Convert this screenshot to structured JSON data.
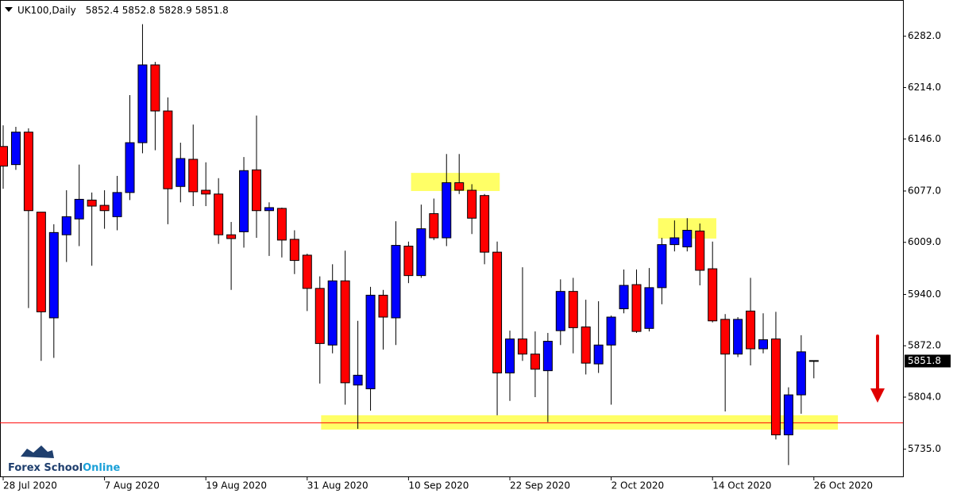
{
  "chart_data": {
    "type": "candlestick",
    "title": "UK100,Daily",
    "categories": [
      "28 Jul 2020",
      null,
      null,
      null,
      null,
      null,
      null,
      null,
      "7 Aug 2020",
      null,
      null,
      null,
      null,
      null,
      null,
      null,
      "19 Aug 2020",
      null,
      null,
      null,
      null,
      null,
      null,
      null,
      "31 Aug 2020",
      null,
      null,
      null,
      null,
      null,
      null,
      null,
      "10 Sep 2020",
      null,
      null,
      null,
      null,
      null,
      null,
      null,
      "22 Sep 2020",
      null,
      null,
      null,
      null,
      null,
      null,
      null,
      "2 Oct 2020",
      null,
      null,
      null,
      null,
      null,
      null,
      null,
      "14 Oct 2020",
      null,
      null,
      null,
      null,
      null,
      null,
      null,
      "26 Oct 2020"
    ],
    "open": [
      6136,
      6112,
      6155,
      6049,
      5909,
      6019,
      6040,
      6065,
      6058,
      6043,
      6075,
      6141,
      6244,
      6183,
      6083,
      6119,
      6078,
      6073,
      6019,
      6023,
      6105,
      6051,
      6054,
      6013,
      5992,
      5948,
      5873,
      5958,
      5820,
      5815,
      5939,
      5909,
      6004,
      5965,
      6047,
      6015,
      6088,
      6078,
      6071,
      5996,
      5836,
      5881,
      5861,
      5839,
      5892,
      5944,
      5897,
      5848,
      5873,
      5921,
      5953,
      5895,
      5949,
      6006,
      6003,
      6024,
      5974,
      5907,
      5861,
      5918,
      5868,
      5881,
      5754,
      5807,
      5852.4
    ],
    "high": [
      6164,
      6162,
      6160,
      6049,
      6033,
      6078,
      6112,
      6075,
      6078,
      6097,
      6204,
      6298,
      6248,
      6201,
      6141,
      6165,
      6115,
      6094,
      6036,
      6122,
      6177,
      6062,
      6055,
      6025,
      5994,
      5964,
      5980,
      5998,
      5905,
      5950,
      5946,
      6037,
      6010,
      6059,
      6067,
      6126,
      6126,
      6086,
      6073,
      6010,
      5892,
      5976,
      5891,
      5889,
      5960,
      5962,
      5933,
      5931,
      5912,
      5973,
      5973,
      5975,
      6015,
      6038,
      6041,
      6034,
      6010,
      5914,
      5910,
      5962,
      5915,
      5917,
      5817,
      5886,
      5852.8
    ],
    "low": [
      6080,
      6105,
      5922,
      5852,
      5856,
      5983,
      6004,
      5978,
      6027,
      6025,
      6065,
      6127,
      6131,
      6033,
      6062,
      6057,
      6057,
      6007,
      5946,
      6002,
      6015,
      5991,
      5989,
      5967,
      5918,
      5822,
      5862,
      5794,
      5762,
      5786,
      5867,
      5873,
      5955,
      5962,
      6012,
      6004,
      6073,
      6020,
      5980,
      5780,
      5799,
      5852,
      5804,
      5771,
      5873,
      5862,
      5834,
      5836,
      5794,
      5915,
      5889,
      5891,
      5927,
      5997,
      5997,
      5952,
      5903,
      5785,
      5857,
      5846,
      5862,
      5748,
      5714,
      5782,
      5828.9
    ],
    "close": [
      6110,
      6155,
      6051,
      5917,
      6022,
      6043,
      6066,
      6057,
      6051,
      6075,
      6141,
      6244,
      6183,
      6080,
      6120,
      6076,
      6073,
      6019,
      6014,
      6104,
      6051,
      6055,
      6012,
      5985,
      5948,
      5875,
      5958,
      5823,
      5833,
      5939,
      5910,
      6005,
      5965,
      6027,
      6015,
      6088,
      6078,
      6041,
      5996,
      5836,
      5881,
      5861,
      5841,
      5878,
      5944,
      5896,
      5849,
      5873,
      5910,
      5952,
      5891,
      5949,
      6006,
      6015,
      6025,
      5972,
      5905,
      5861,
      5907,
      5868,
      5880,
      5754,
      5807,
      5864,
      5851.8
    ],
    "bull_color": "#0000ff",
    "bear_color": "#ff0000",
    "ylim": [
      5699,
      6330
    ],
    "yticks": [
      {
        "value": 5735,
        "label": "5735.0"
      },
      {
        "value": 5804,
        "label": "5804.0"
      },
      {
        "value": 5872,
        "label": "5872.0"
      },
      {
        "value": 5940,
        "label": "5940.0"
      },
      {
        "value": 6009,
        "label": "6009.0"
      },
      {
        "value": 6077,
        "label": "6077.0"
      },
      {
        "value": 6146,
        "label": "6146.0"
      },
      {
        "value": 6214,
        "label": "6214.0"
      },
      {
        "value": 6282,
        "label": "6282.0"
      }
    ],
    "hline": {
      "value": 5770,
      "color": "#ff0000"
    },
    "zones": [
      {
        "x_range": [
          32.2,
          39.2
        ],
        "y_range": [
          6077,
          6101
        ]
      },
      {
        "x_range": [
          51.7,
          56.3
        ],
        "y_range": [
          6014,
          6041
        ]
      },
      {
        "x_range": [
          25.1,
          65.9
        ],
        "y_range": [
          5761,
          5780
        ]
      }
    ],
    "zone_color": "#ffff66",
    "brand": [
      "Forex School",
      "Online"
    ]
  }
}
